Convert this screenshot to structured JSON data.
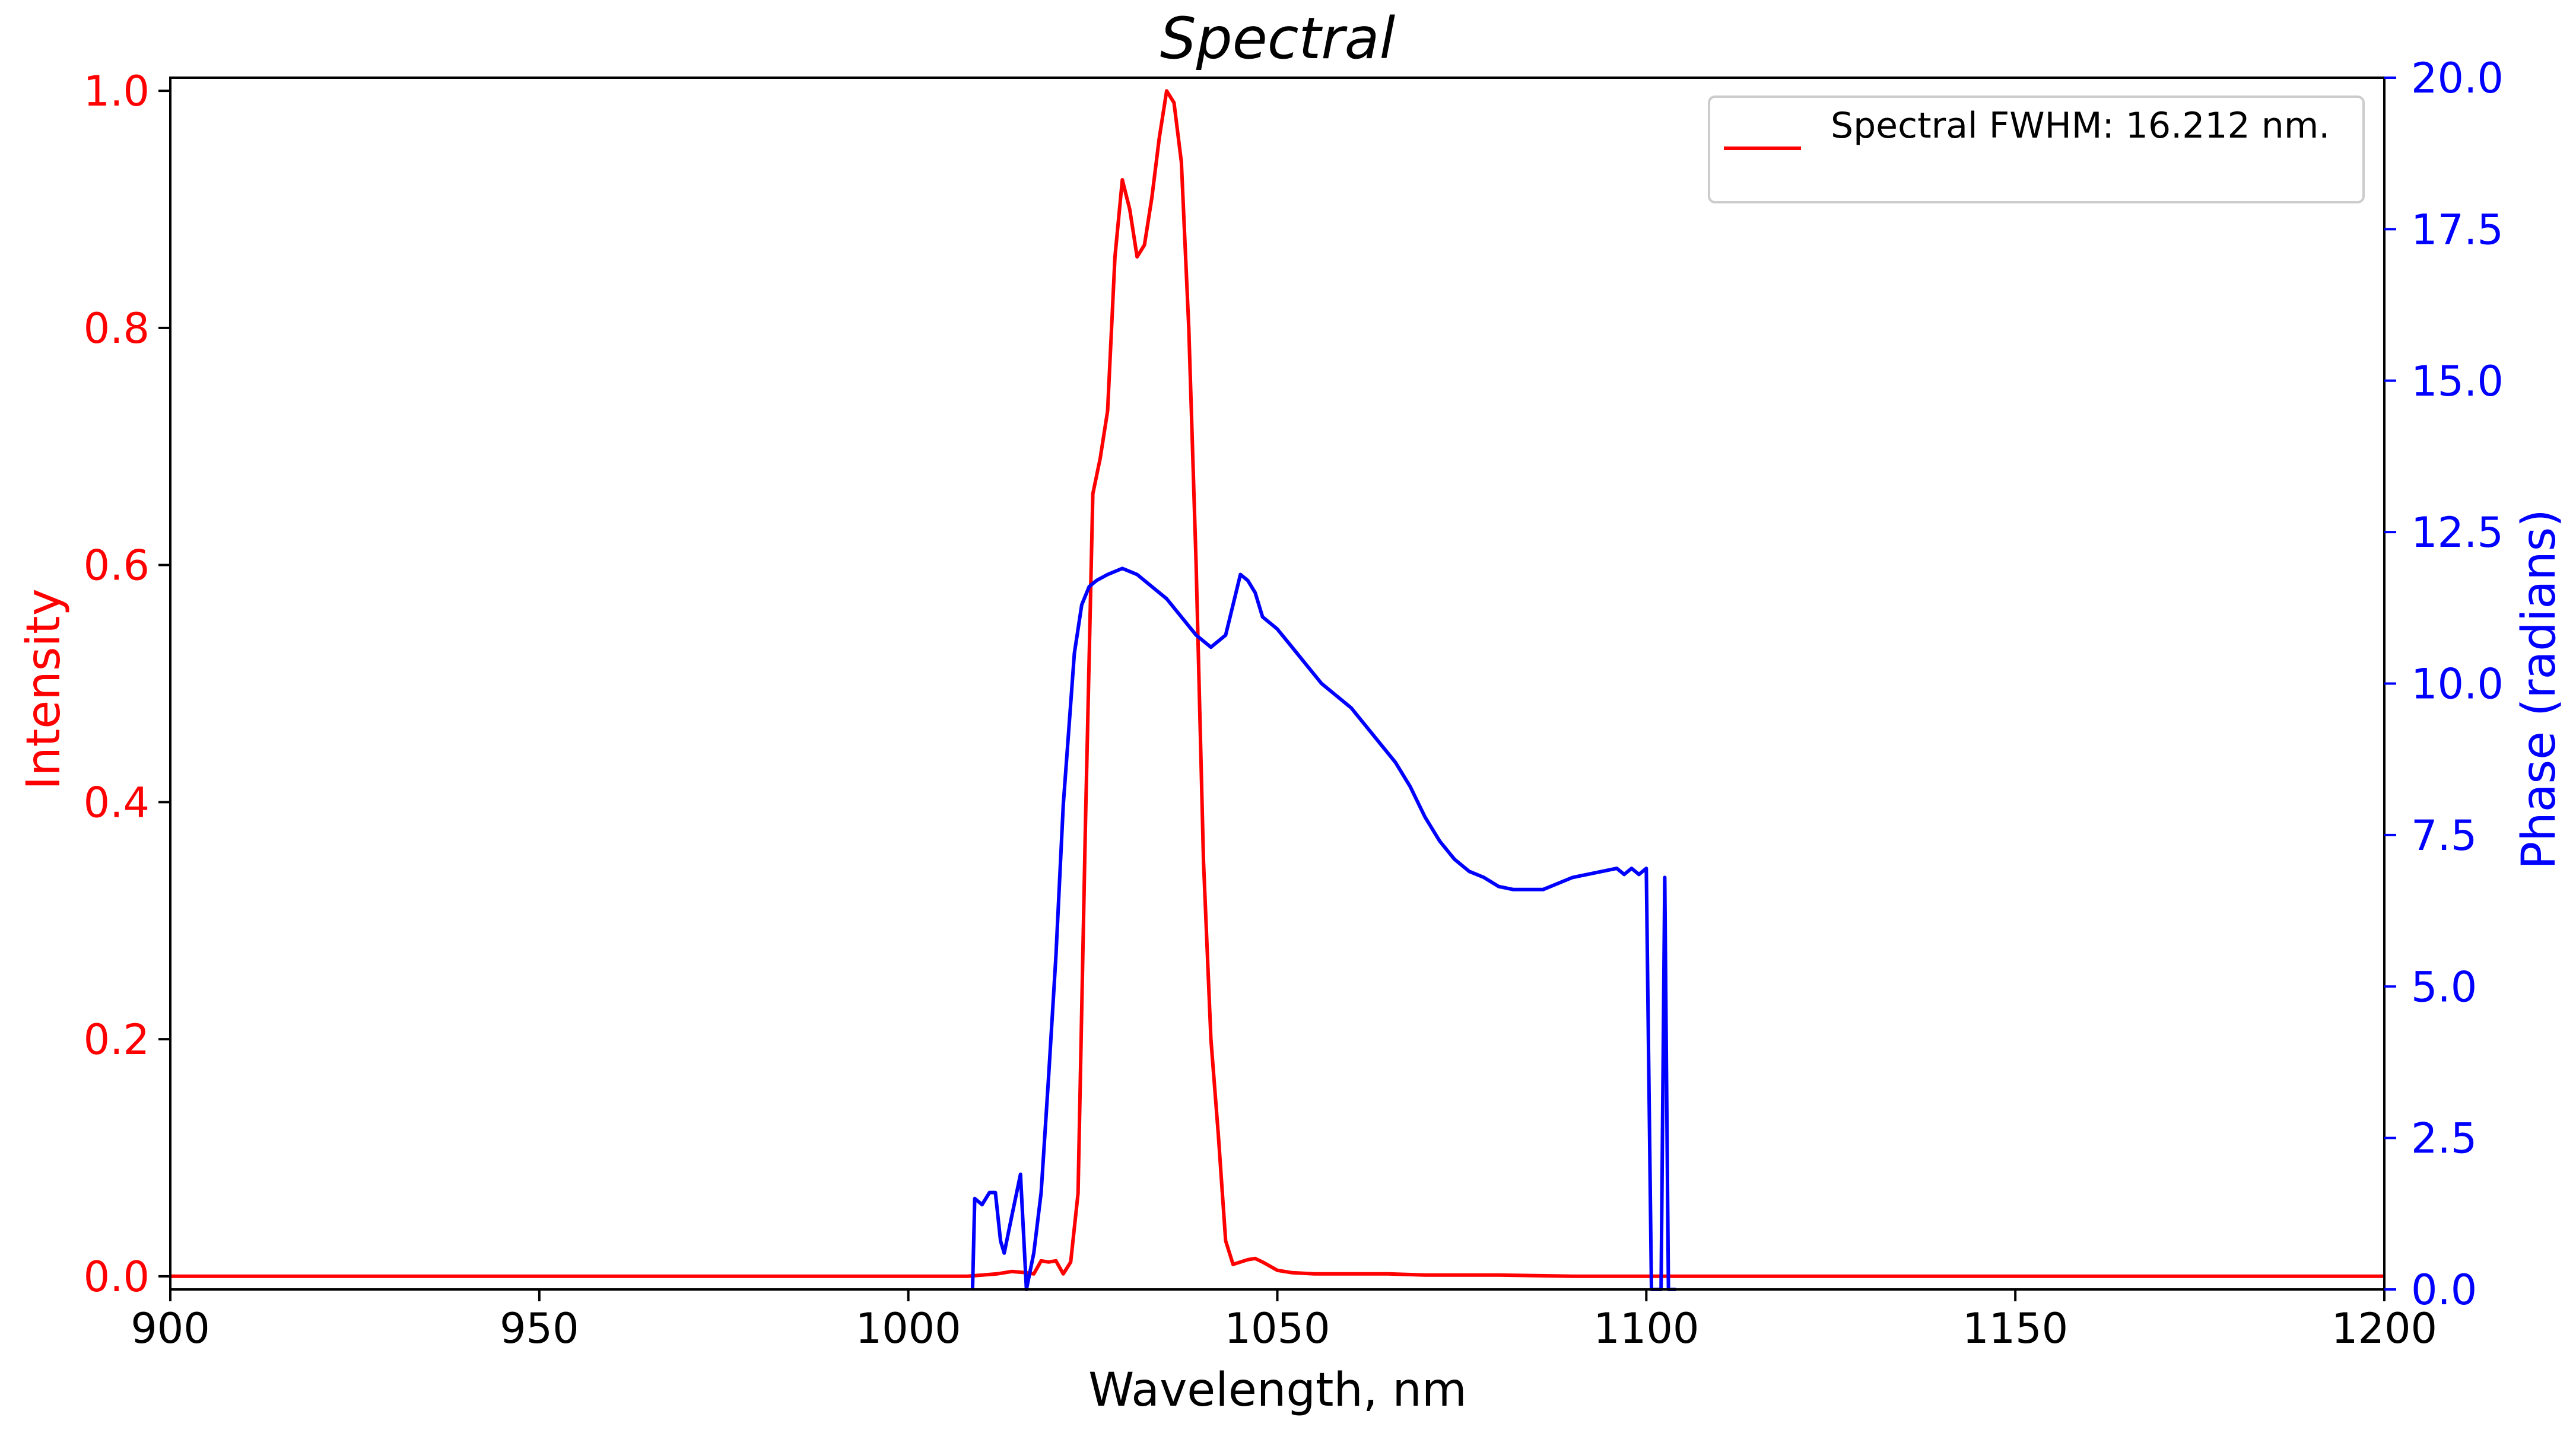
{
  "chart_data": {
    "type": "line",
    "title": "Spectral",
    "xlabel": "Wavelength, nm",
    "ylabel_left": "Intensity",
    "ylabel_right": "Phase (radians)",
    "xlim": [
      900,
      1200
    ],
    "ylim_left": [
      -0.0111,
      1.0111
    ],
    "ylim_right": [
      0,
      20
    ],
    "x_ticks": [
      900,
      950,
      1000,
      1050,
      1100,
      1150,
      1200
    ],
    "x_tick_labels": [
      "900",
      "950",
      "1000",
      "1050",
      "1100",
      "1150",
      "1200"
    ],
    "left_ticks": [
      0.0,
      0.2,
      0.4,
      0.6,
      0.8,
      1.0
    ],
    "left_tick_labels": [
      "0.0",
      "0.2",
      "0.4",
      "0.6",
      "0.8",
      "1.0"
    ],
    "right_ticks": [
      0.0,
      2.5,
      5.0,
      7.5,
      10.0,
      12.5,
      15.0,
      17.5,
      20.0
    ],
    "right_tick_labels": [
      "0.0",
      "2.5",
      "5.0",
      "7.5",
      "10.0",
      "12.5",
      "15.0",
      "17.5",
      "20.0"
    ],
    "grid": false,
    "legend_position": "top-right",
    "series": [
      {
        "name": "Spectral FWHM: 16.212 nm.",
        "axis": "left",
        "color": "#ff0000",
        "x": [
          900,
          1008,
          1012,
          1014,
          1016,
          1017,
          1018,
          1019,
          1020,
          1021,
          1022,
          1023,
          1024,
          1025,
          1026,
          1027,
          1028,
          1029,
          1030,
          1031,
          1032,
          1033,
          1034,
          1035,
          1036,
          1037,
          1038,
          1039,
          1040,
          1041,
          1042,
          1043,
          1044,
          1045,
          1046,
          1047,
          1048,
          1050,
          1052,
          1055,
          1060,
          1065,
          1070,
          1080,
          1090,
          1100,
          1200
        ],
        "y": [
          0,
          0.0,
          0.002,
          0.004,
          0.003,
          0.002,
          0.013,
          0.012,
          0.013,
          0.002,
          0.012,
          0.07,
          0.38,
          0.66,
          0.69,
          0.73,
          0.86,
          0.925,
          0.9,
          0.86,
          0.87,
          0.91,
          0.96,
          1.0,
          0.99,
          0.94,
          0.8,
          0.6,
          0.35,
          0.2,
          0.12,
          0.03,
          0.01,
          0.012,
          0.014,
          0.015,
          0.012,
          0.005,
          0.003,
          0.002,
          0.002,
          0.002,
          0.001,
          0.001,
          0.0,
          0.0,
          0
        ]
      },
      {
        "axis": "right",
        "color": "#0000ff",
        "x": [
          1008.7,
          1009.0,
          1010.0,
          1011.0,
          1011.8,
          1012.5,
          1013.0,
          1014.0,
          1015.2,
          1016.0,
          1017.0,
          1018.0,
          1019.0,
          1020.0,
          1021.0,
          1021.6,
          1022.5,
          1023.5,
          1024.5,
          1025.5,
          1027.0,
          1029.0,
          1031.0,
          1033.0,
          1035.0,
          1037.0,
          1039.0,
          1041.0,
          1043.0,
          1044.0,
          1045.0,
          1046.0,
          1047.0,
          1048.0,
          1050.0,
          1052.0,
          1054.0,
          1056.0,
          1058.0,
          1060.0,
          1062.0,
          1064.0,
          1066.0,
          1068.0,
          1070.0,
          1072.0,
          1074.0,
          1076.0,
          1078.0,
          1080.0,
          1082.0,
          1084.0,
          1086.0,
          1088.0,
          1090.0,
          1092.0,
          1094.0,
          1096.0,
          1097.0,
          1098.0,
          1099.0,
          1100.0,
          1100.7,
          1101.3,
          1102.0,
          1102.5,
          1103.0,
          1103.5,
          1104.0
        ],
        "y": [
          0.0,
          1.5,
          1.4,
          1.6,
          1.6,
          0.8,
          0.6,
          1.2,
          1.9,
          0.0,
          0.6,
          1.6,
          3.5,
          5.5,
          8.0,
          9.0,
          10.5,
          11.3,
          11.6,
          11.7,
          11.8,
          11.9,
          11.8,
          11.6,
          11.4,
          11.1,
          10.8,
          10.6,
          10.8,
          11.3,
          11.8,
          11.7,
          11.5,
          11.1,
          10.9,
          10.6,
          10.3,
          10.0,
          9.8,
          9.6,
          9.3,
          9.0,
          8.7,
          8.3,
          7.8,
          7.4,
          7.1,
          6.9,
          6.8,
          6.65,
          6.6,
          6.6,
          6.6,
          6.7,
          6.8,
          6.85,
          6.9,
          6.95,
          6.85,
          6.95,
          6.85,
          6.95,
          0.0,
          0.0,
          0.0,
          6.8,
          0.0,
          0.0,
          0.0
        ]
      }
    ]
  }
}
